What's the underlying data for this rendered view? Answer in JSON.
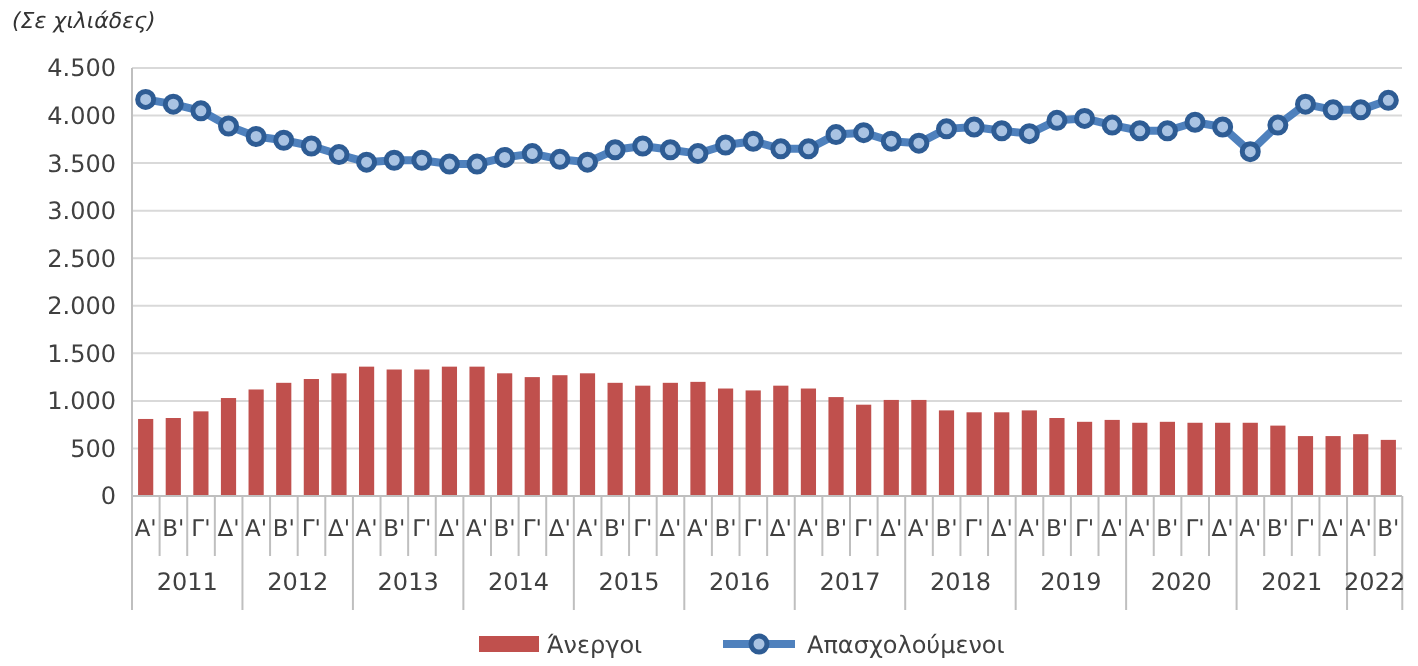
{
  "chart_data": {
    "type": "bar",
    "ylabel": "(Σε χιλιάδες)",
    "categories": [
      "Α'",
      "Β'",
      "Γ'",
      "Δ'",
      "Α'",
      "Β'",
      "Γ'",
      "Δ'",
      "Α'",
      "Β'",
      "Γ'",
      "Δ'",
      "Α'",
      "Β'",
      "Γ'",
      "Δ'",
      "Α'",
      "Β'",
      "Γ'",
      "Δ'",
      "Α'",
      "Β'",
      "Γ'",
      "Δ'",
      "Α'",
      "Β'",
      "Γ'",
      "Δ'",
      "Α'",
      "Β'",
      "Γ'",
      "Δ'",
      "Α'",
      "Β'",
      "Γ'",
      "Δ'",
      "Α'",
      "Β'",
      "Γ'",
      "Δ'",
      "Α'",
      "Β'",
      "Γ'",
      "Δ'",
      "Α'",
      "Β'"
    ],
    "annotations": [
      "2011",
      "2012",
      "2013",
      "2014",
      "2015",
      "2016",
      "2017",
      "2018",
      "2019",
      "2020",
      "2021",
      "2022"
    ],
    "series": [
      {
        "name": "Άνεργοι",
        "color": "#c0504d",
        "values": [
          810,
          820,
          890,
          1030,
          1120,
          1190,
          1230,
          1290,
          1360,
          1330,
          1330,
          1360,
          1360,
          1290,
          1250,
          1270,
          1290,
          1190,
          1160,
          1190,
          1200,
          1130,
          1110,
          1160,
          1130,
          1040,
          960,
          1010,
          1010,
          900,
          880,
          880,
          900,
          820,
          780,
          800,
          770,
          780,
          770,
          770,
          770,
          740,
          630,
          630,
          650,
          590
        ]
      },
      {
        "name": "Απασχολούμενοι",
        "type": "line",
        "color": "#2e5c94",
        "marker": "circle",
        "values": [
          4170,
          4120,
          4050,
          3890,
          3780,
          3740,
          3680,
          3590,
          3510,
          3530,
          3530,
          3490,
          3490,
          3560,
          3600,
          3540,
          3510,
          3640,
          3680,
          3640,
          3600,
          3690,
          3730,
          3650,
          3650,
          3800,
          3820,
          3730,
          3710,
          3860,
          3880,
          3840,
          3810,
          3950,
          3970,
          3900,
          3840,
          3840,
          3930,
          3880,
          3620,
          3900,
          4120,
          4060,
          4060,
          4160
        ]
      }
    ],
    "ylim": [
      0,
      4500
    ],
    "yticks": [
      {
        "value": 0,
        "label": "0"
      },
      {
        "value": 500,
        "label": "500"
      },
      {
        "value": 1000,
        "label": "1.000"
      },
      {
        "value": 1500,
        "label": "1.500"
      },
      {
        "value": 2000,
        "label": "2.000"
      },
      {
        "value": 2500,
        "label": "2.500"
      },
      {
        "value": 3000,
        "label": "3.000"
      },
      {
        "value": 3500,
        "label": "3.500"
      },
      {
        "value": 4000,
        "label": "4.000"
      },
      {
        "value": 4500,
        "label": "4.500"
      }
    ],
    "grid": "y",
    "legend": "bottom"
  }
}
